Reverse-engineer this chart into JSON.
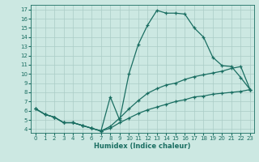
{
  "xlabel": "Humidex (Indice chaleur)",
  "bg_color": "#cce8e2",
  "grid_color": "#aaccc6",
  "line_color": "#1a6e62",
  "xlim_min": -0.5,
  "xlim_max": 23.4,
  "ylim_min": 3.6,
  "ylim_max": 17.5,
  "xticks": [
    0,
    1,
    2,
    3,
    4,
    5,
    6,
    7,
    8,
    9,
    10,
    11,
    12,
    13,
    14,
    15,
    16,
    17,
    18,
    19,
    20,
    21,
    22,
    23
  ],
  "yticks": [
    4,
    5,
    6,
    7,
    8,
    9,
    10,
    11,
    12,
    13,
    14,
    15,
    16,
    17
  ],
  "line1_x": [
    0,
    1,
    2,
    3,
    4,
    5,
    6,
    7,
    8,
    9,
    10,
    11,
    12,
    13,
    14,
    15,
    16,
    17,
    18,
    19,
    20,
    21,
    22,
    23
  ],
  "line1_y": [
    6.2,
    5.6,
    5.3,
    4.7,
    4.7,
    4.4,
    4.1,
    3.8,
    7.5,
    5.0,
    10.0,
    13.2,
    15.3,
    16.9,
    16.6,
    16.6,
    16.5,
    15.0,
    14.0,
    11.8,
    10.9,
    10.8,
    9.6,
    8.3
  ],
  "line2_x": [
    0,
    1,
    2,
    3,
    4,
    5,
    6,
    7,
    8,
    9,
    10,
    11,
    12,
    13,
    14,
    15,
    16,
    17,
    18,
    19,
    20,
    21,
    22,
    23
  ],
  "line2_y": [
    6.2,
    5.6,
    5.3,
    4.7,
    4.7,
    4.4,
    4.1,
    3.8,
    4.3,
    5.2,
    6.2,
    7.1,
    7.9,
    8.4,
    8.8,
    9.0,
    9.4,
    9.7,
    9.9,
    10.1,
    10.3,
    10.6,
    10.8,
    8.3
  ],
  "line3_x": [
    0,
    1,
    2,
    3,
    4,
    5,
    6,
    7,
    8,
    9,
    10,
    11,
    12,
    13,
    14,
    15,
    16,
    17,
    18,
    19,
    20,
    21,
    22,
    23
  ],
  "line3_y": [
    6.2,
    5.6,
    5.3,
    4.7,
    4.7,
    4.4,
    4.1,
    3.8,
    4.1,
    4.7,
    5.2,
    5.7,
    6.1,
    6.4,
    6.7,
    7.0,
    7.2,
    7.5,
    7.6,
    7.8,
    7.9,
    8.0,
    8.1,
    8.3
  ]
}
